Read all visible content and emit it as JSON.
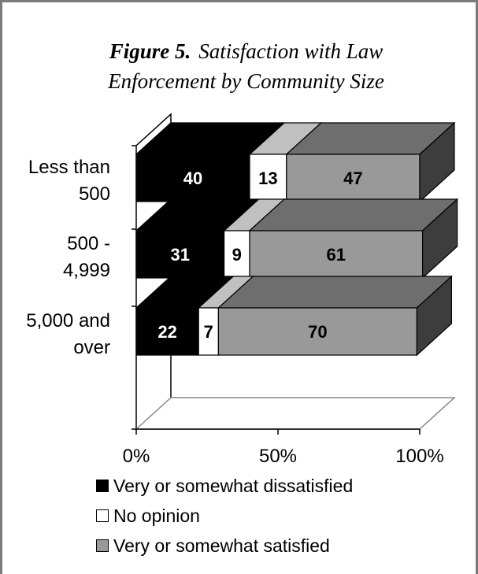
{
  "title": {
    "figure_label": "Figure 5.",
    "text_line1": "Satisfaction with Law",
    "text_line2": "Enforcement by Community Size"
  },
  "chart_data": {
    "type": "bar",
    "orientation": "horizontal",
    "stacked": true,
    "percent_stacked": true,
    "style": "3d",
    "title": "Figure 5. Satisfaction with Law Enforcement by Community Size",
    "categories": [
      "Less than 500",
      "500 - 4,999",
      "5,000 and over"
    ],
    "category_label_lines": [
      [
        "Less than",
        "500"
      ],
      [
        "500 -",
        "4,999"
      ],
      [
        "5,000 and",
        "over"
      ]
    ],
    "series": [
      {
        "name": "Very or somewhat dissatisfied",
        "values": [
          40,
          31,
          22
        ],
        "color": "#000000",
        "label_color": "#ffffff"
      },
      {
        "name": "No opinion",
        "values": [
          13,
          9,
          7
        ],
        "color": "#ffffff",
        "label_color": "#000000"
      },
      {
        "name": "Very or somewhat satisfied",
        "values": [
          47,
          61,
          70
        ],
        "color": "#999999",
        "label_color": "#000000"
      }
    ],
    "xlim": [
      0,
      100
    ],
    "x_ticks": [
      0,
      50,
      100
    ],
    "x_tick_labels": [
      "0%",
      "50%",
      "100%"
    ],
    "grid": false,
    "legend": "bottom"
  }
}
